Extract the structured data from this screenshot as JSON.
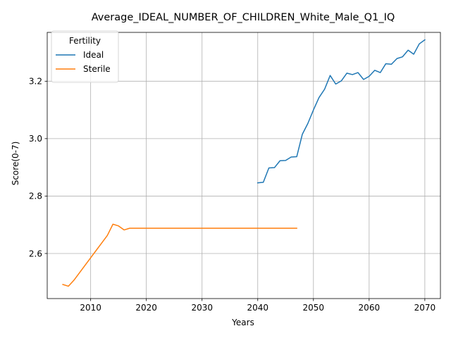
{
  "chart_data": {
    "type": "line",
    "title": "Average_IDEAL_NUMBER_OF_CHILDREN_White_Male_Q1_IQ",
    "xlabel": "Years",
    "ylabel": "Score(0-7)",
    "xlim": [
      2002.2,
      2072.8
    ],
    "ylim": [
      2.443,
      3.37
    ],
    "xticks": [
      2010,
      2020,
      2030,
      2040,
      2050,
      2060,
      2070
    ],
    "yticks": [
      2.6,
      2.8,
      3.0,
      3.2
    ],
    "ytick_labels": [
      "2.6",
      "2.8",
      "3.0",
      "3.2"
    ],
    "grid": true,
    "legend": {
      "title": "Fertility",
      "position": "top-left"
    },
    "series": [
      {
        "name": "Ideal",
        "color": "#1f77b4",
        "x": [
          2040,
          2041,
          2042,
          2043,
          2044,
          2045,
          2046,
          2047,
          2048,
          2049,
          2050,
          2051,
          2052,
          2053,
          2054,
          2055,
          2056,
          2057,
          2058,
          2059,
          2060,
          2061,
          2062,
          2063,
          2064,
          2065,
          2066,
          2067,
          2068,
          2069,
          2070
        ],
        "y": [
          2.846,
          2.848,
          2.898,
          2.899,
          2.923,
          2.924,
          2.936,
          2.937,
          3.015,
          3.053,
          3.1,
          3.143,
          3.172,
          3.22,
          3.19,
          3.201,
          3.228,
          3.223,
          3.23,
          3.206,
          3.217,
          3.238,
          3.23,
          3.261,
          3.259,
          3.279,
          3.285,
          3.308,
          3.294,
          3.33,
          3.344
        ]
      },
      {
        "name": "Sterile",
        "color": "#ff7f0e",
        "x": [
          2005,
          2006,
          2007,
          2008,
          2009,
          2010,
          2011,
          2012,
          2013,
          2014,
          2015,
          2016,
          2017,
          2018,
          2019,
          2020,
          2021,
          2022,
          2023,
          2024,
          2025,
          2026,
          2027,
          2028,
          2029,
          2030,
          2031,
          2032,
          2033,
          2034,
          2035,
          2036,
          2037,
          2038,
          2039,
          2040,
          2041,
          2042,
          2043,
          2044,
          2045,
          2046,
          2047
        ],
        "y": [
          2.492,
          2.486,
          2.507,
          2.533,
          2.559,
          2.585,
          2.611,
          2.637,
          2.663,
          2.702,
          2.696,
          2.682,
          2.688,
          2.688,
          2.688,
          2.688,
          2.688,
          2.688,
          2.688,
          2.688,
          2.688,
          2.688,
          2.688,
          2.688,
          2.688,
          2.688,
          2.688,
          2.688,
          2.688,
          2.688,
          2.688,
          2.688,
          2.688,
          2.688,
          2.688,
          2.688,
          2.688,
          2.688,
          2.688,
          2.688,
          2.688,
          2.688,
          2.688
        ]
      }
    ]
  }
}
